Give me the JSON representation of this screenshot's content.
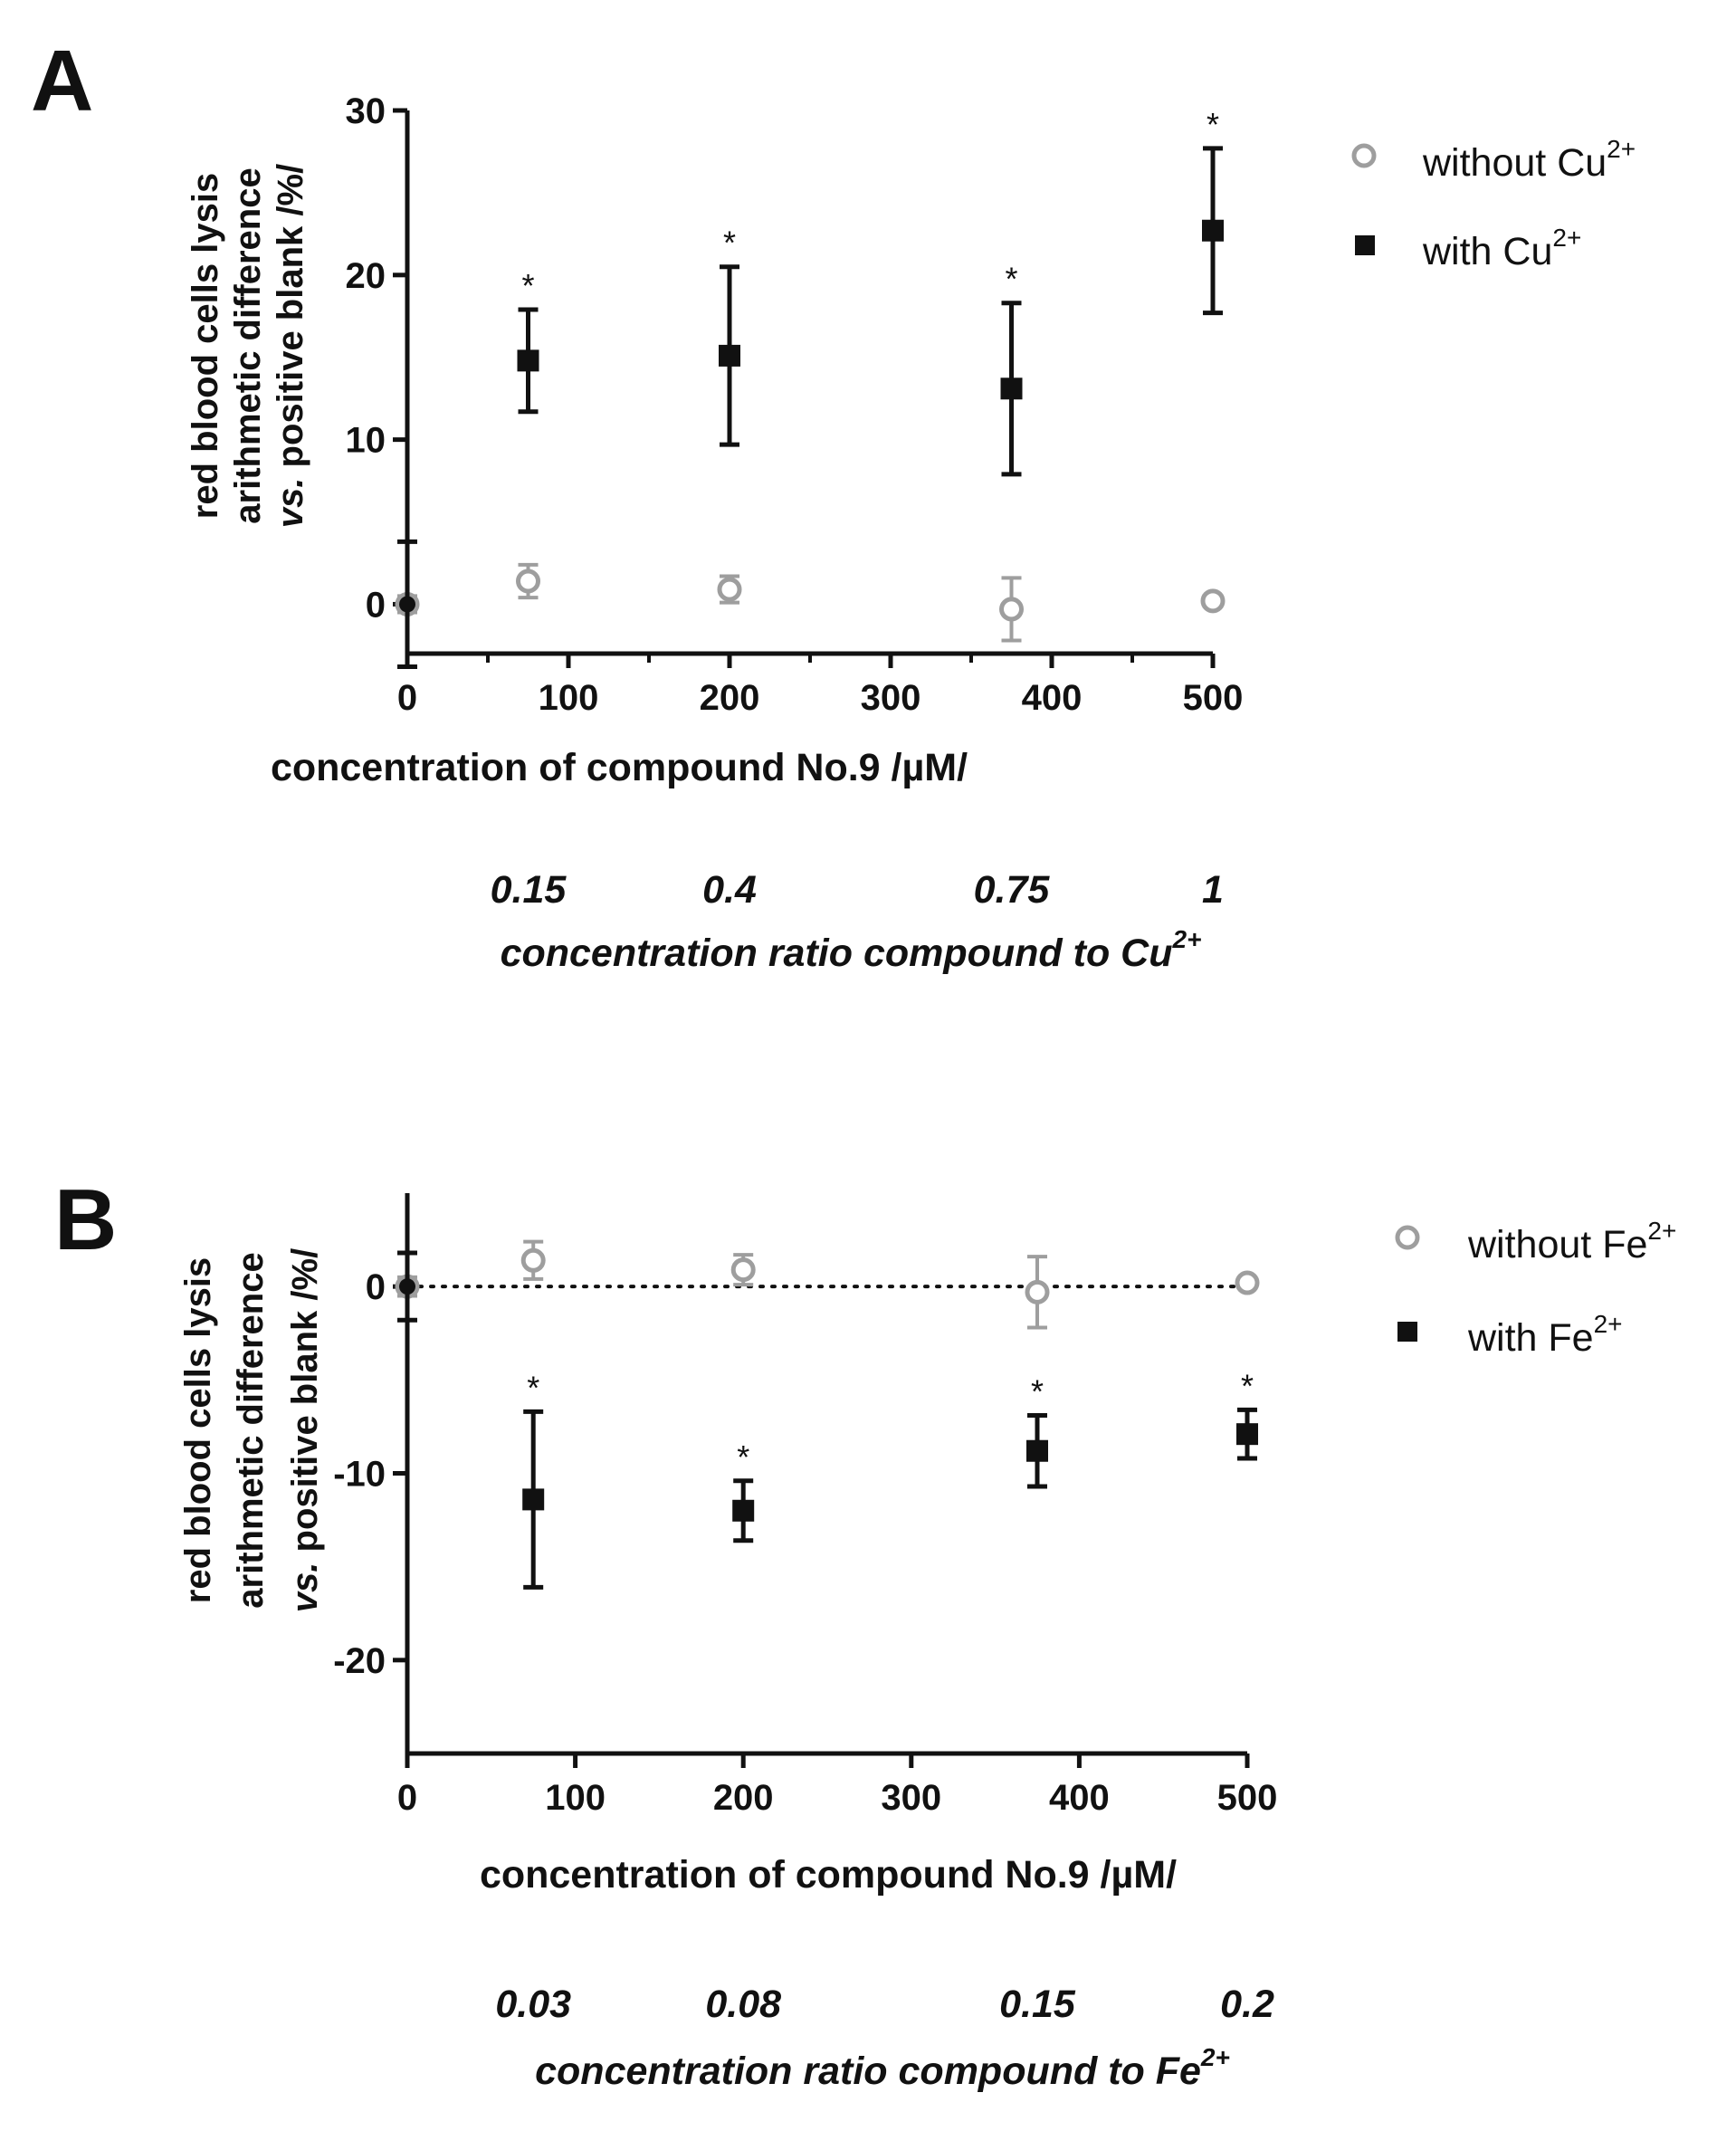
{
  "chart_data": [
    {
      "type": "scatter",
      "panel_label": "A",
      "xlabel": "concentration of compound No.9 /µM/",
      "ylabel_lines": [
        "red blood cells lysis",
        "arithmetic difference"
      ],
      "ylabel_italic_prefix": "vs.",
      "ylabel_rest": " positive blank /%/",
      "xlim": [
        0,
        500
      ],
      "ylim": [
        -3,
        30
      ],
      "x_ticks": [
        0,
        100,
        200,
        300,
        400,
        500
      ],
      "y_ticks": [
        0,
        10,
        20,
        30
      ],
      "zero_line": false,
      "series": [
        {
          "name": "without Cu2+",
          "legend_base": "without Cu",
          "legend_sup": "2+",
          "marker": "open-circle",
          "color": "#9e9e9e",
          "points": [
            {
              "x": 0,
              "y": 0,
              "err": 0.5
            },
            {
              "x": 75,
              "y": 1.4,
              "err": 1.0
            },
            {
              "x": 200,
              "y": 0.9,
              "err": 0.8
            },
            {
              "x": 375,
              "y": -0.3,
              "err": 1.9
            },
            {
              "x": 500,
              "y": 0.2,
              "err": 0
            }
          ]
        },
        {
          "name": "with Cu2+",
          "legend_base": "with Cu",
          "legend_sup": "2+",
          "marker": "filled-square",
          "color": "#111111",
          "points": [
            {
              "x": 0,
              "y": 0,
              "err": 3.8
            },
            {
              "x": 75,
              "y": 14.8,
              "err": 3.1,
              "sig": "*"
            },
            {
              "x": 200,
              "y": 15.1,
              "err": 5.4,
              "sig": "*"
            },
            {
              "x": 375,
              "y": 13.1,
              "err": 5.2,
              "sig": "*"
            },
            {
              "x": 500,
              "y": 22.7,
              "err": 5.0,
              "sig": "*"
            }
          ]
        }
      ],
      "ratio_labels": [
        {
          "x": 75,
          "label": "0.15"
        },
        {
          "x": 200,
          "label": "0.4"
        },
        {
          "x": 375,
          "label": "0.75"
        },
        {
          "x": 500,
          "label": "1"
        }
      ],
      "ratio_title_base": "concentration ratio compound to Cu",
      "ratio_title_sup": "2+"
    },
    {
      "type": "scatter",
      "panel_label": "B",
      "xlabel": "concentration of compound No.9  /µM/",
      "ylabel_lines": [
        "red blood cells lysis",
        "arithmetic difference"
      ],
      "ylabel_italic_prefix": "vs.",
      "ylabel_rest": " positive blank /%/",
      "xlim": [
        0,
        500
      ],
      "ylim": [
        -25,
        5
      ],
      "x_ticks": [
        0,
        100,
        200,
        300,
        400,
        500
      ],
      "y_ticks": [
        -20,
        -10,
        0
      ],
      "y_tick_labels": [
        "-20",
        "-10",
        "0"
      ],
      "zero_line": true,
      "series": [
        {
          "name": "without Fe2+",
          "legend_base": "without Fe",
          "legend_sup": "2+",
          "marker": "open-circle",
          "color": "#9e9e9e",
          "points": [
            {
              "x": 0,
              "y": 0,
              "err": 0.5
            },
            {
              "x": 75,
              "y": 1.4,
              "err": 1.0
            },
            {
              "x": 200,
              "y": 0.9,
              "err": 0.8
            },
            {
              "x": 375,
              "y": -0.3,
              "err": 1.9
            },
            {
              "x": 500,
              "y": 0.2,
              "err": 0
            }
          ]
        },
        {
          "name": "with Fe2+",
          "legend_base": "with Fe",
          "legend_sup": "2+",
          "marker": "filled-square",
          "color": "#111111",
          "points": [
            {
              "x": 0,
              "y": 0,
              "err": 1.8
            },
            {
              "x": 75,
              "y": -11.4,
              "err": 4.7,
              "sig": "*"
            },
            {
              "x": 200,
              "y": -12.0,
              "err": 1.6,
              "sig": "*"
            },
            {
              "x": 375,
              "y": -8.8,
              "err": 1.9,
              "sig": "*"
            },
            {
              "x": 500,
              "y": -7.9,
              "err": 1.3,
              "sig": "*"
            }
          ]
        }
      ],
      "ratio_labels": [
        {
          "x": 75,
          "label": "0.03"
        },
        {
          "x": 200,
          "label": "0.08"
        },
        {
          "x": 375,
          "label": "0.15"
        },
        {
          "x": 500,
          "label": "0.2"
        }
      ],
      "ratio_title_base": "concentration ratio compound to Fe",
      "ratio_title_sup": "2+"
    }
  ]
}
